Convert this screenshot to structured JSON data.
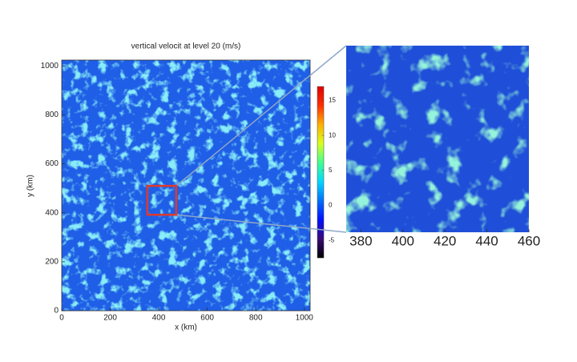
{
  "chart_data": [
    {
      "type": "heatmap",
      "title": "vertical velocit at level 20 (m/s)",
      "x_label": "x (km)",
      "y_label": "y (km)",
      "xlim": [
        0,
        1024
      ],
      "ylim": [
        0,
        1024
      ],
      "xticks": [
        0,
        200,
        400,
        600,
        800,
        1000
      ],
      "yticks": [
        0,
        200,
        400,
        600,
        800,
        1000
      ],
      "colorbar": {
        "lim": [
          -7.5,
          17
        ],
        "ticks": [
          -5,
          0,
          5,
          10,
          15
        ],
        "colormap": [
          "#000000",
          "#3b0a78",
          "#0010ff",
          "#0070ff",
          "#00d8ff",
          "#40ff90",
          "#d8ff20",
          "#ffb000",
          "#ff3000",
          "#e00000"
        ]
      },
      "highlight": {
        "xlim": [
          353,
          472
        ],
        "ylim": [
          392,
          510
        ],
        "color": "#e0392b"
      }
    },
    {
      "type": "heatmap",
      "xlim": [
        373,
        460
      ],
      "xticks": [
        380,
        400,
        420,
        440,
        460
      ]
    }
  ]
}
